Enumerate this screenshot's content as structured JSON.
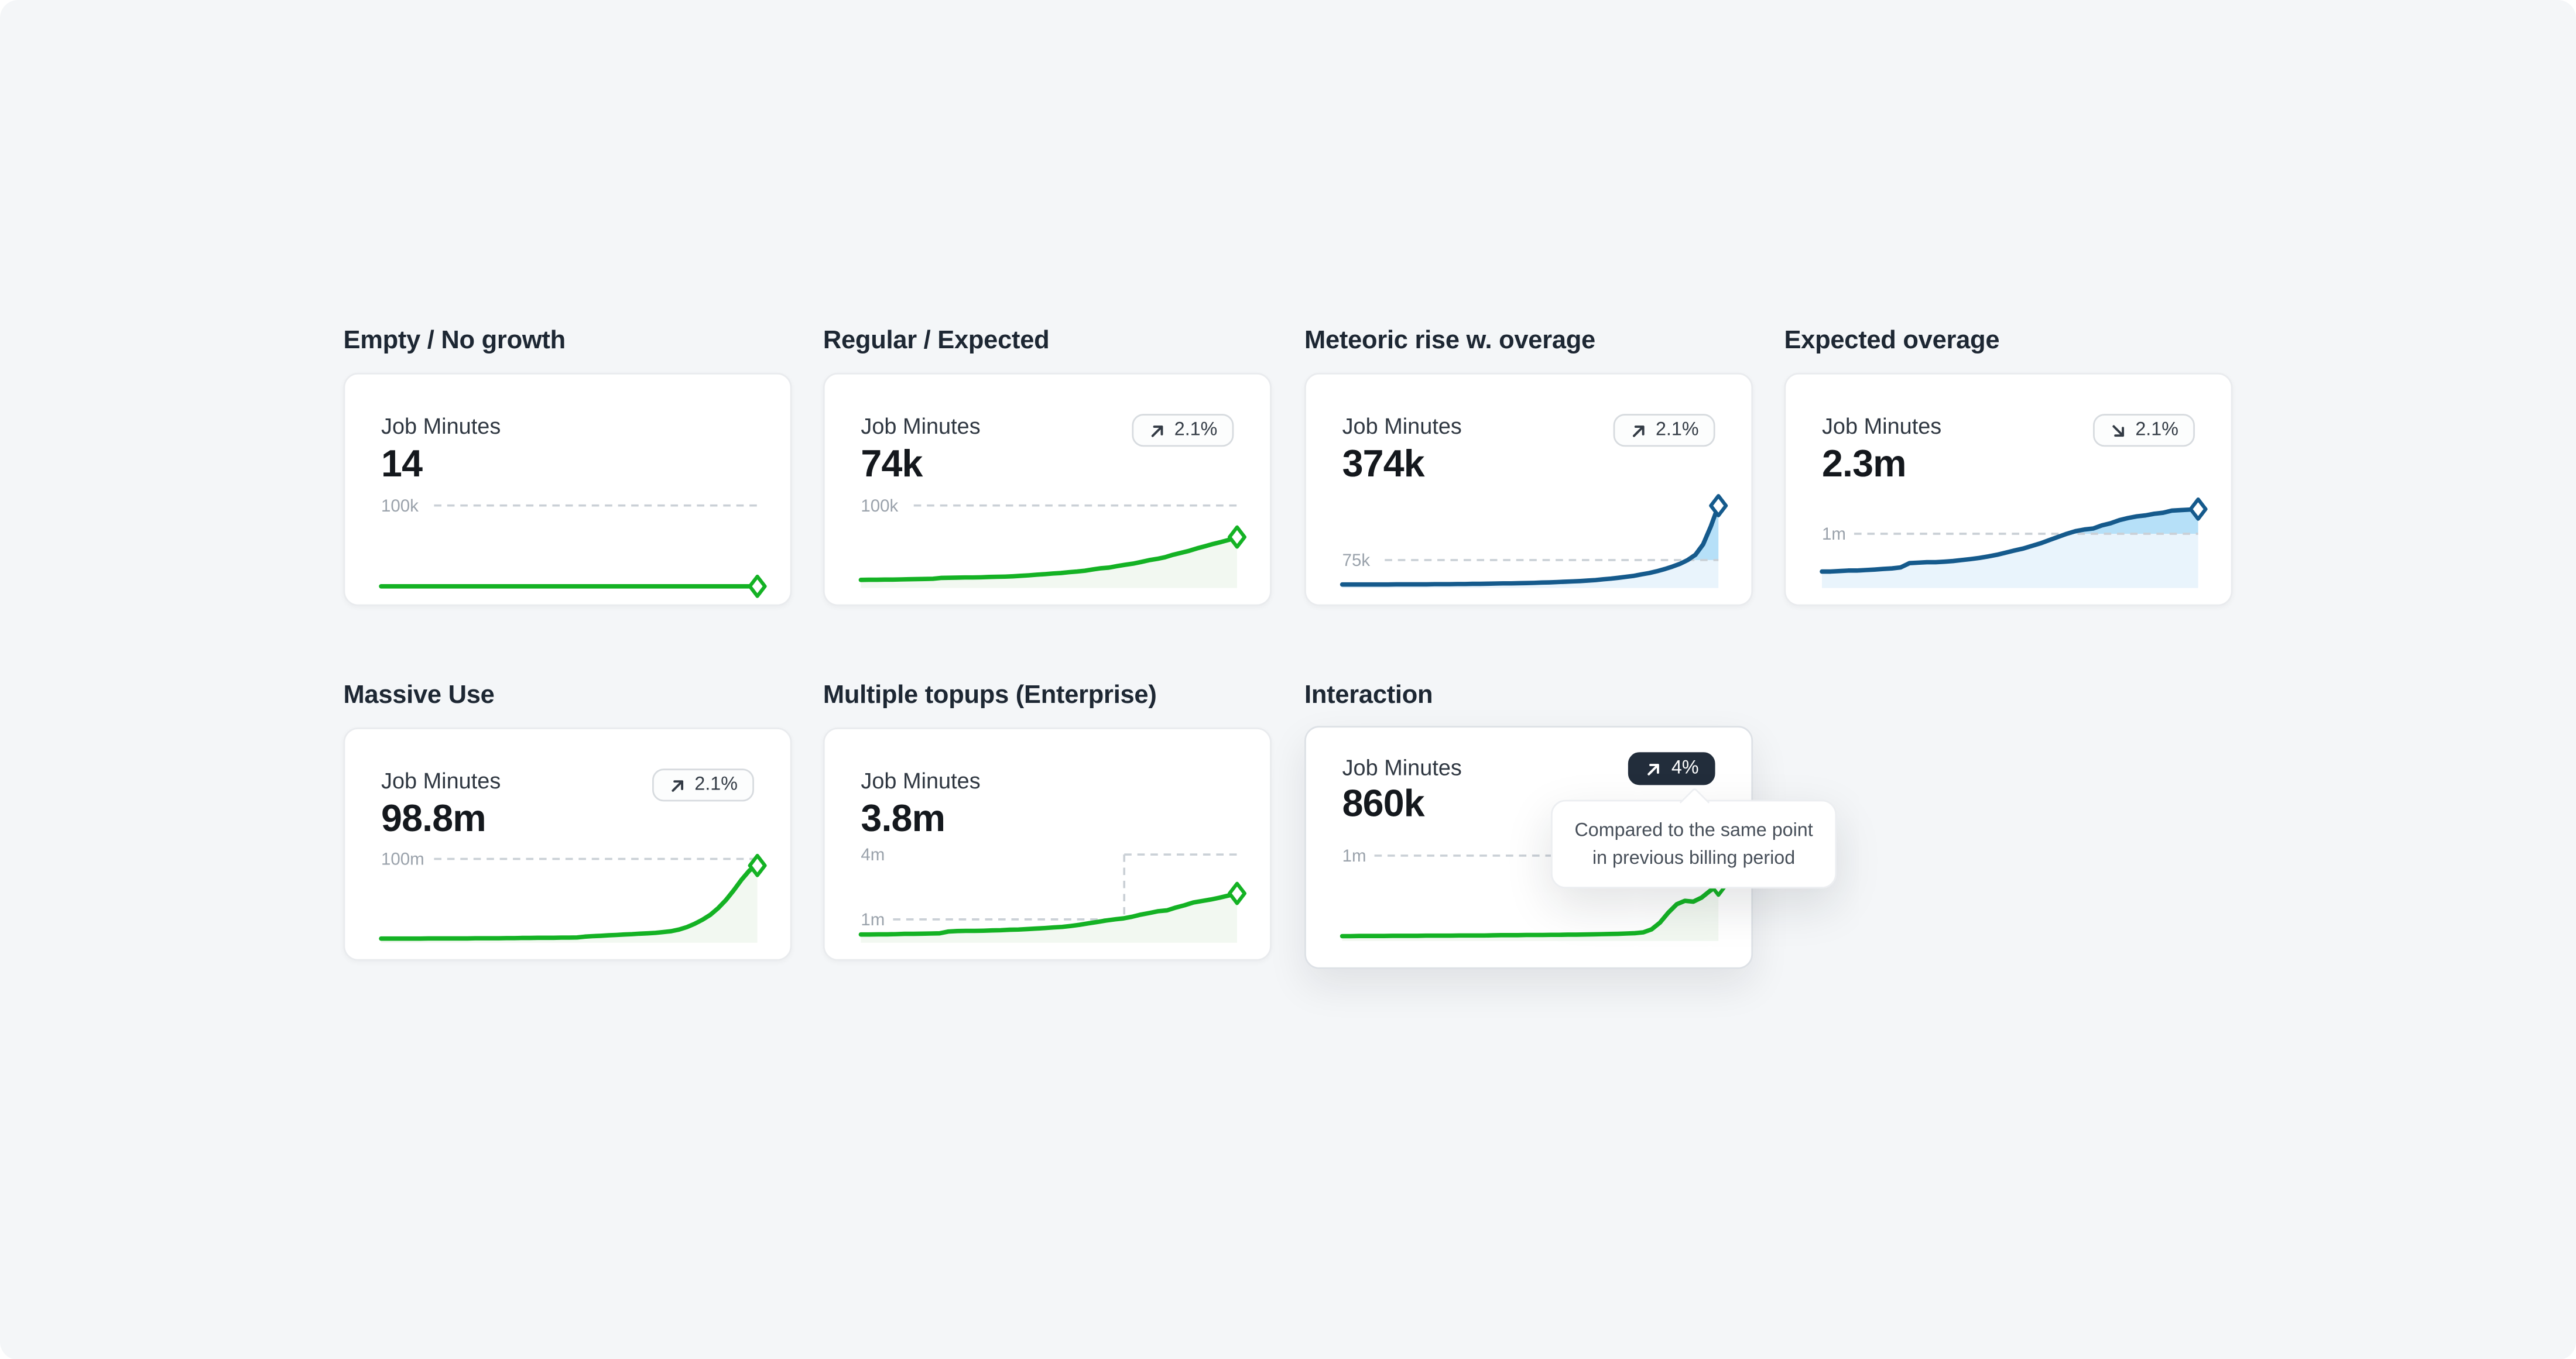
{
  "page": {
    "background": "#f4f6f8"
  },
  "tooltip": {
    "line1": "Compared to the same point",
    "line2": "in previous billing period"
  },
  "colors": {
    "green_line": "#14b224",
    "green_fill": "#f2f8f1",
    "blue_line": "#155a8c",
    "blue_fill": "#e9f4fc",
    "blue_overage_fill": "#b6e0f8",
    "dark_badge_bg": "#222d3b",
    "threshold_dash": "#cad0d6"
  },
  "sections": [
    {
      "title": "Empty / No growth",
      "card": {
        "metric_label": "Job Minutes",
        "value": "14",
        "badge": null,
        "chart": {
          "type": "line",
          "color": "#14b224",
          "fill": "#f2f8f1",
          "overage_fill": null,
          "ymax": 122,
          "thresholds": [
            {
              "label": "100k",
              "value": 100,
              "x_from": 0,
              "x_to": 1
            }
          ],
          "step_x": null,
          "values": [
            0.02,
            0.02,
            0.02,
            0.02,
            0.02,
            0.02,
            0.02,
            0.02,
            0.02,
            0.02,
            0.02,
            0.02,
            0.02,
            0.02,
            0.02,
            0.02,
            0.02,
            0.02,
            0.02,
            0.02,
            0.02,
            0.02,
            0.02,
            0.02,
            0.02,
            0.02,
            0.02,
            0.02,
            0.02,
            0.02,
            0.02,
            0.02,
            0.02,
            0.02,
            0.02,
            0.02,
            0.02,
            0.02,
            0.02,
            0.02
          ]
        }
      }
    },
    {
      "title": "Regular / Expected",
      "card": {
        "metric_label": "Job Minutes",
        "value": "74k",
        "badge": {
          "direction": "up",
          "text": "2.1%",
          "variant": "light"
        },
        "chart": {
          "type": "line",
          "color": "#14b224",
          "fill": "#f2f8f1",
          "overage_fill": null,
          "ymax": 122,
          "thresholds": [
            {
              "label": "100k",
              "value": 100,
              "x_from": 0,
              "x_to": 1
            }
          ],
          "step_x": null,
          "values": [
            8,
            8.1,
            8.2,
            8.3,
            8.4,
            8.6,
            8.8,
            9,
            9.2,
            9.4,
            10.4,
            10.6,
            10.8,
            10.9,
            11,
            11.2,
            11.5,
            11.8,
            12,
            12.4,
            13,
            13.6,
            14.4,
            15,
            15.8,
            16.4,
            17.4,
            18.2,
            19.4,
            21,
            22.4,
            23.2,
            25,
            26.6,
            28,
            30,
            32.4,
            34,
            36,
            39,
            41.5,
            44,
            47,
            49.6,
            52.4,
            55,
            57.5,
            61
          ]
        }
      }
    },
    {
      "title": "Meteoric rise w. overage",
      "card": {
        "metric_label": "Job Minutes",
        "value": "374k",
        "badge": {
          "direction": "up",
          "text": "2.1%",
          "variant": "light"
        },
        "chart": {
          "type": "line",
          "color": "#155a8c",
          "fill": "#e9f4fc",
          "overage_fill": "#b6e0f8",
          "ymax": 281,
          "thresholds": [
            {
              "label": "75k",
              "value": 75,
              "x_from": 0,
              "x_to": 1
            }
          ],
          "step_x": null,
          "values": [
            5,
            5,
            5.1,
            5.1,
            5.2,
            5.2,
            5.3,
            5.4,
            5.5,
            5.6,
            5.7,
            5.8,
            6,
            6.1,
            6.3,
            6.5,
            6.7,
            7,
            7.2,
            7.5,
            7.8,
            8.2,
            8.6,
            9,
            9.5,
            10,
            10.6,
            11.4,
            12.2,
            13,
            14,
            15.2,
            16.6,
            18,
            20,
            22,
            24.5,
            27,
            30,
            34,
            38,
            43,
            49,
            56,
            64,
            75,
            90,
            120,
            170,
            230
          ]
        }
      }
    },
    {
      "title": "Expected overage",
      "card": {
        "metric_label": "Job Minutes",
        "value": "2.3m",
        "badge": {
          "direction": "down",
          "text": "2.1%",
          "variant": "light"
        },
        "chart": {
          "type": "line",
          "color": "#155a8c",
          "fill": "#e9f4fc",
          "overage_fill": "#b6e0f8",
          "ymax": 1.875,
          "thresholds": [
            {
              "label": "1m",
              "value": 1,
              "x_from": 0,
              "x_to": 1
            }
          ],
          "step_x": null,
          "values": [
            0.28,
            0.28,
            0.29,
            0.3,
            0.3,
            0.31,
            0.32,
            0.33,
            0.34,
            0.36,
            0.44,
            0.45,
            0.46,
            0.46,
            0.47,
            0.48,
            0.5,
            0.52,
            0.54,
            0.57,
            0.6,
            0.64,
            0.68,
            0.72,
            0.77,
            0.82,
            0.88,
            0.94,
            1.0,
            1.05,
            1.08,
            1.1,
            1.16,
            1.2,
            1.26,
            1.3,
            1.33,
            1.35,
            1.38,
            1.4,
            1.44,
            1.45,
            1.46,
            1.47
          ]
        }
      }
    },
    {
      "title": "Massive Use",
      "card": {
        "metric_label": "Job Minutes",
        "value": "98.8m",
        "badge": {
          "direction": "up",
          "text": "2.1%",
          "variant": "light"
        },
        "chart": {
          "type": "line",
          "color": "#14b224",
          "fill": "#f2f8f1",
          "overage_fill": null,
          "ymax": 120,
          "thresholds": [
            {
              "label": "100m",
              "value": 100,
              "x_from": 0,
              "x_to": 1
            }
          ],
          "step_x": null,
          "values": [
            3,
            3,
            3,
            3.05,
            3.1,
            3.1,
            3.15,
            3.2,
            3.2,
            3.25,
            3.3,
            3.3,
            3.35,
            3.4,
            3.45,
            3.5,
            3.55,
            3.6,
            3.7,
            3.8,
            3.9,
            4,
            4.1,
            4.2,
            4.3,
            4.4,
            5.5,
            6,
            6.5,
            7,
            7.5,
            8,
            8.5,
            9,
            9.5,
            10,
            11,
            12,
            14,
            17,
            21,
            26,
            32,
            40,
            50,
            62,
            75,
            86,
            92
          ]
        }
      }
    },
    {
      "title": "Multiple topups (Enterprise)",
      "card": {
        "metric_label": "Job Minutes",
        "value": "3.8m",
        "badge": null,
        "chart": {
          "type": "line",
          "color": "#14b224",
          "fill": "#f2f8f1",
          "overage_fill": null,
          "ymax": 4.55,
          "thresholds": [
            {
              "label": "1m",
              "value": 1,
              "x_from": 0,
              "x_to": 0.7
            },
            {
              "label": "4m",
              "value": 4,
              "x_from": 0.7,
              "x_to": 1
            }
          ],
          "step_x": 0.7,
          "values": [
            0.3,
            0.3,
            0.31,
            0.31,
            0.32,
            0.33,
            0.33,
            0.34,
            0.35,
            0.36,
            0.44,
            0.46,
            0.47,
            0.47,
            0.48,
            0.49,
            0.5,
            0.52,
            0.53,
            0.55,
            0.58,
            0.6,
            0.63,
            0.65,
            0.7,
            0.75,
            0.82,
            0.88,
            0.95,
            1.0,
            1.05,
            1.12,
            1.22,
            1.3,
            1.38,
            1.42,
            1.55,
            1.65,
            1.78,
            1.85,
            1.92,
            2.0,
            2.1,
            2.2
          ]
        }
      }
    },
    {
      "title": "Interaction",
      "card": {
        "metric_label": "Job Minutes",
        "value": "860k",
        "state": "hover",
        "badge": {
          "direction": "up",
          "text": "4%",
          "variant": "dark"
        },
        "show_tooltip": true,
        "chart": {
          "type": "line",
          "color": "#14b224",
          "fill": "#f2f8f1",
          "overage_fill": null,
          "ymax": 1.176,
          "thresholds": [
            {
              "label": "1m",
              "value": 1,
              "x_from": 0,
              "x_to": 1
            }
          ],
          "step_x": null,
          "values": [
            0.04,
            0.04,
            0.041,
            0.041,
            0.042,
            0.042,
            0.043,
            0.043,
            0.044,
            0.044,
            0.045,
            0.045,
            0.046,
            0.046,
            0.047,
            0.047,
            0.048,
            0.048,
            0.049,
            0.05,
            0.05,
            0.051,
            0.052,
            0.052,
            0.053,
            0.054,
            0.055,
            0.056,
            0.057,
            0.058,
            0.06,
            0.062,
            0.064,
            0.066,
            0.07,
            0.075,
            0.085,
            0.12,
            0.2,
            0.32,
            0.42,
            0.46,
            0.45,
            0.5,
            0.58,
            0.647
          ]
        }
      }
    }
  ]
}
